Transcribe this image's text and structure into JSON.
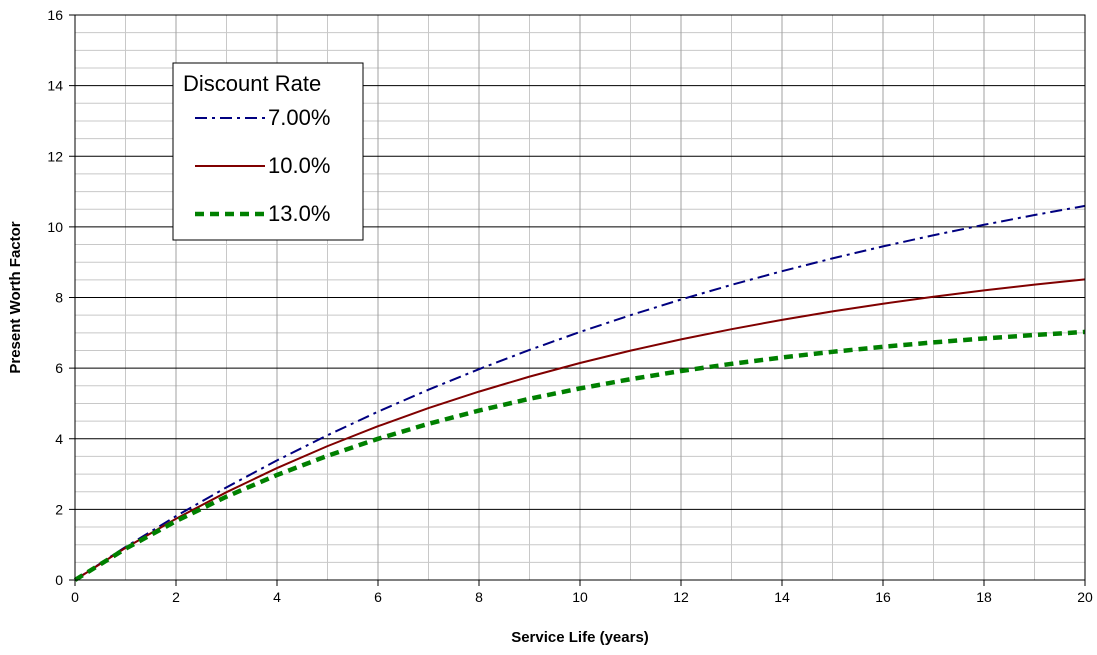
{
  "chart_data": {
    "type": "line",
    "title": "",
    "xlabel": "Service Life (years)",
    "ylabel": "Present Worth Factor",
    "xlim": [
      0,
      20
    ],
    "ylim": [
      0,
      16
    ],
    "x_ticks": [
      0,
      2,
      4,
      6,
      8,
      10,
      12,
      14,
      16,
      18,
      20
    ],
    "y_ticks": [
      0,
      2,
      4,
      6,
      8,
      10,
      12,
      14,
      16
    ],
    "x_minor_step": 1,
    "y_minor_step": 0.5,
    "grid": true,
    "legend": {
      "title": "Discount Rate",
      "placement": "top-left"
    },
    "x": [
      0,
      1,
      2,
      3,
      4,
      5,
      6,
      7,
      8,
      9,
      10,
      11,
      12,
      13,
      14,
      15,
      16,
      17,
      18,
      19,
      20
    ],
    "series": [
      {
        "name": "7.00%",
        "color": "#000080",
        "style": "dash-dot",
        "values": [
          0,
          0.935,
          1.808,
          2.624,
          3.387,
          4.1,
          4.767,
          5.389,
          5.971,
          6.515,
          7.024,
          7.499,
          7.943,
          8.358,
          8.745,
          9.108,
          9.447,
          9.763,
          10.059,
          10.336,
          10.594
        ]
      },
      {
        "name": "10.0%",
        "color": "#800000",
        "style": "solid",
        "values": [
          0,
          0.909,
          1.736,
          2.487,
          3.17,
          3.791,
          4.355,
          4.868,
          5.335,
          5.759,
          6.145,
          6.495,
          6.814,
          7.103,
          7.367,
          7.606,
          7.824,
          8.022,
          8.201,
          8.365,
          8.514
        ]
      },
      {
        "name": "13.0%",
        "color": "#008000",
        "style": "dashed",
        "values": [
          0,
          0.885,
          1.668,
          2.361,
          2.974,
          3.517,
          3.998,
          4.423,
          4.799,
          5.132,
          5.426,
          5.687,
          5.918,
          6.122,
          6.302,
          6.462,
          6.604,
          6.729,
          6.84,
          6.938,
          7.025
        ]
      }
    ]
  }
}
